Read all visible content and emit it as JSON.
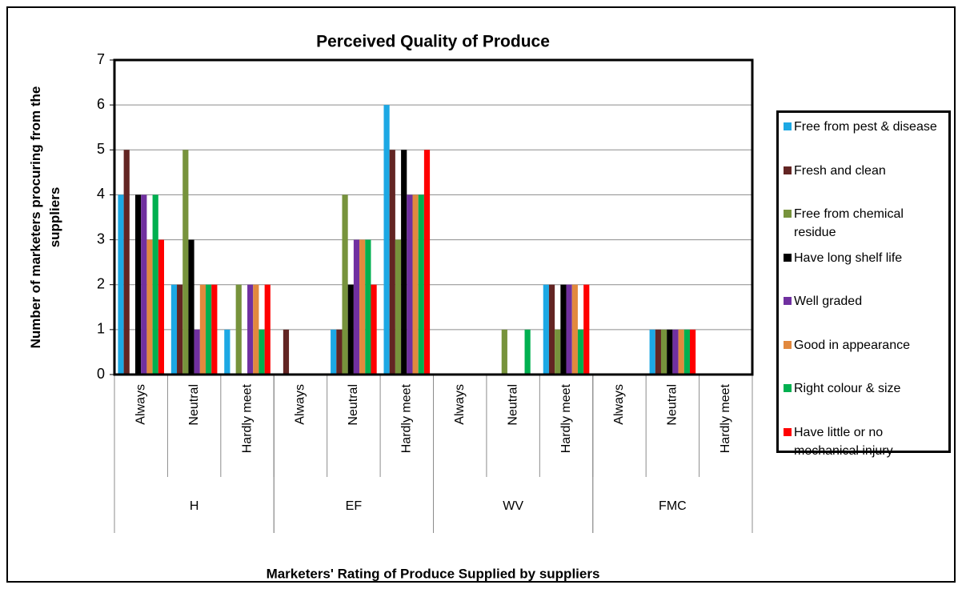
{
  "chart_data": {
    "type": "bar",
    "title": "Perceived Quality of Produce",
    "y_label": "Number of marketers procuring from the suppliers",
    "x_label": "Marketers' Rating of Produce Supplied by suppliers",
    "categories": [
      "Always",
      "Neutral",
      "Hardly meet",
      "Always",
      "Neutral",
      "Hardly meet",
      "Always",
      "Neutral",
      "Hardly meet",
      "Always",
      "Neutral",
      "Hardly meet"
    ],
    "groups": [
      {
        "name": "H",
        "size": 3
      },
      {
        "name": "EF",
        "size": 3
      },
      {
        "name": "WV",
        "size": 3
      },
      {
        "name": "FMC",
        "size": 3
      }
    ],
    "series": [
      {
        "name": "Free from pest & disease",
        "color": "#1ca8e4",
        "values": [
          4,
          2,
          1,
          0,
          1,
          6,
          0,
          0,
          2,
          0,
          1,
          0
        ]
      },
      {
        "name": "Fresh and clean",
        "color": "#632523",
        "values": [
          5,
          2,
          0,
          1,
          1,
          5,
          0,
          0,
          2,
          0,
          1,
          0
        ]
      },
      {
        "name": "Free from chemical residue",
        "color": "#77933c",
        "values": [
          0,
          5,
          2,
          0,
          4,
          3,
          0,
          1,
          1,
          0,
          1,
          0
        ]
      },
      {
        "name": "Have long shelf life",
        "color": "#000000",
        "values": [
          4,
          3,
          0,
          0,
          2,
          5,
          0,
          0,
          2,
          0,
          1,
          0
        ]
      },
      {
        "name": "Well graded",
        "color": "#7030a0",
        "values": [
          4,
          1,
          2,
          0,
          3,
          4,
          0,
          0,
          2,
          0,
          1,
          0
        ]
      },
      {
        "name": "Good in appearance",
        "color": "#e2893e",
        "values": [
          3,
          2,
          2,
          0,
          3,
          4,
          0,
          0,
          2,
          0,
          1,
          0
        ]
      },
      {
        "name": "Right colour & size",
        "color": "#00b050",
        "values": [
          4,
          2,
          1,
          0,
          3,
          4,
          0,
          1,
          1,
          0,
          1,
          0
        ]
      },
      {
        "name": "Have little or no mechanical injury",
        "color": "#ff0000",
        "values": [
          3,
          2,
          2,
          0,
          2,
          5,
          0,
          0,
          2,
          0,
          1,
          0
        ]
      }
    ],
    "ylim": [
      0,
      7
    ],
    "yticks": [
      0,
      1,
      2,
      3,
      4,
      5,
      6,
      7
    ],
    "grid": true,
    "legend": "right"
  }
}
